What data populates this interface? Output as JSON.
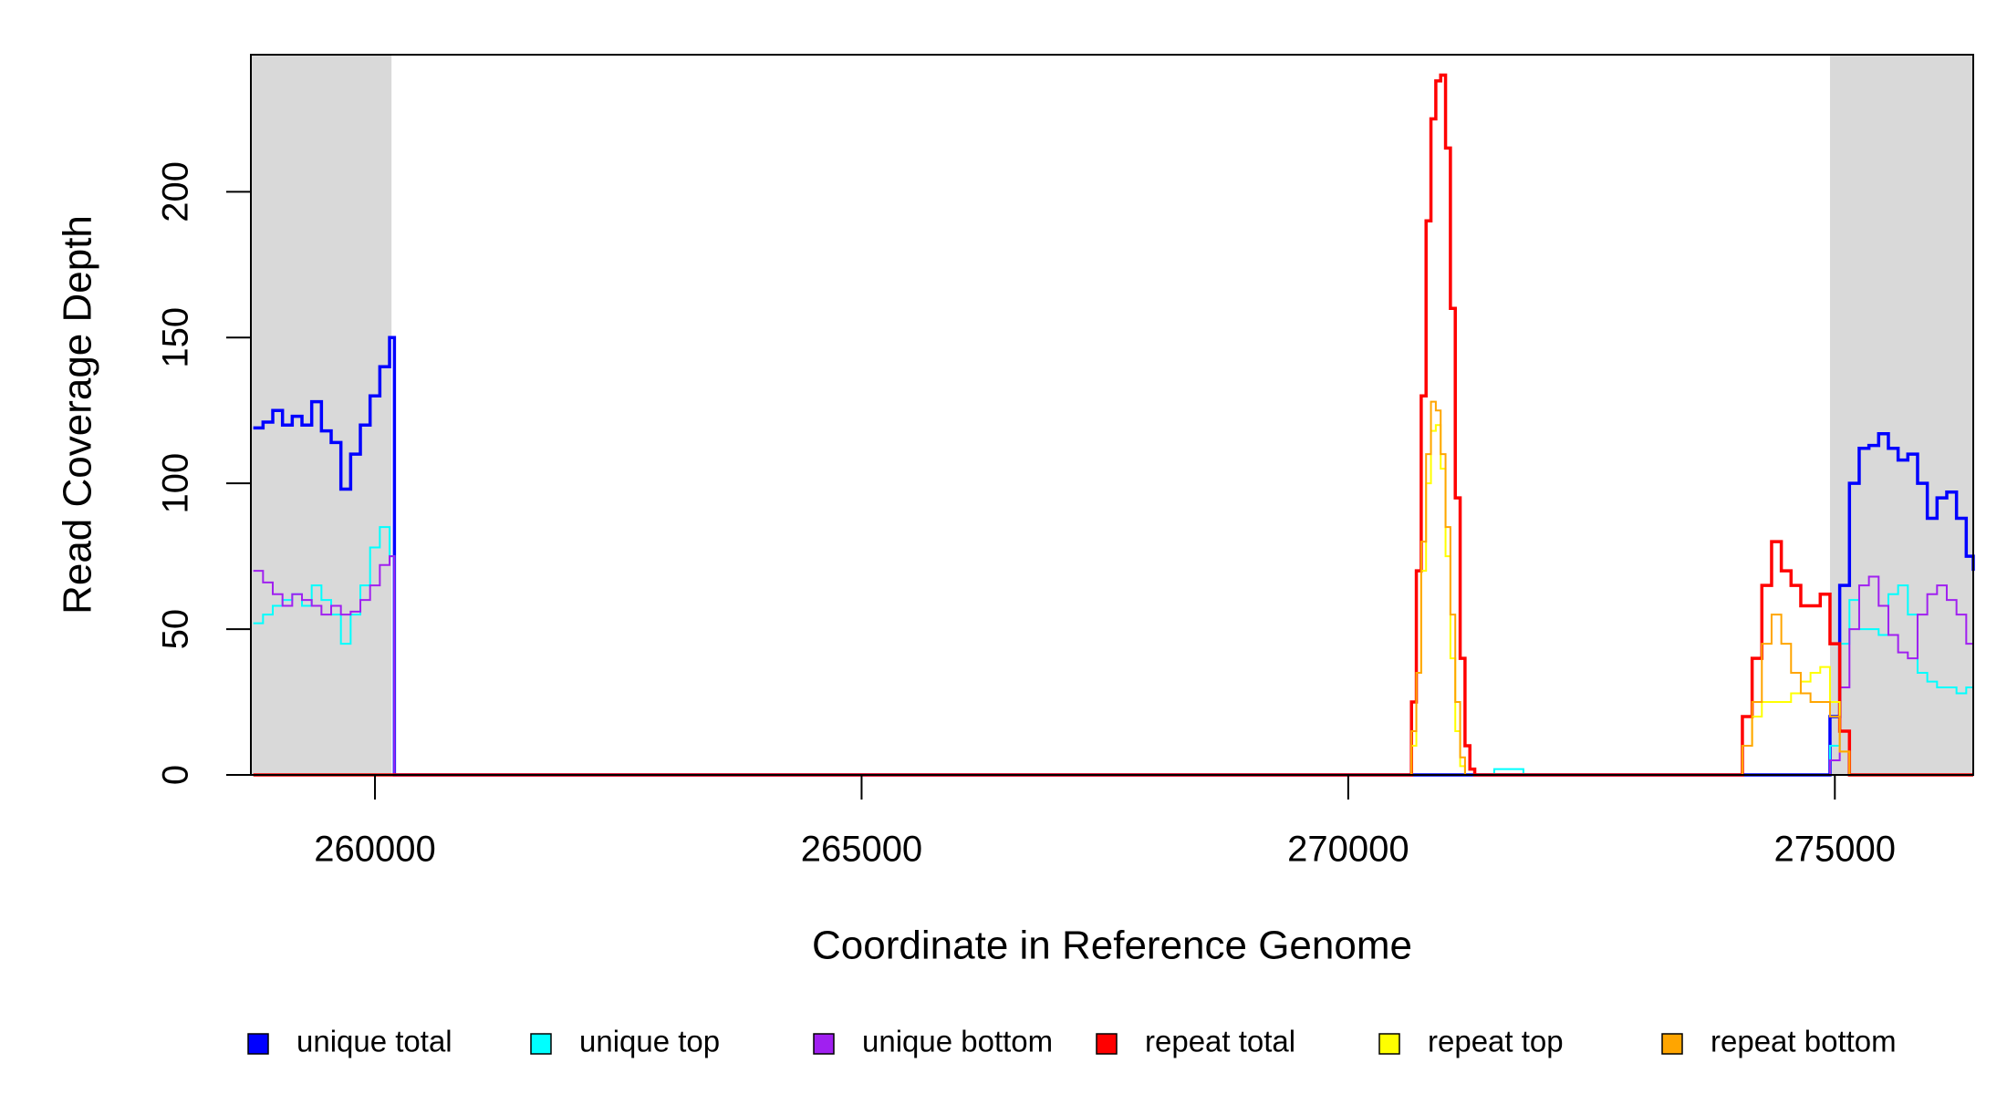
{
  "chart_data": {
    "type": "step",
    "x_label": "Coordinate in Reference Genome",
    "y_label": "Read Coverage Depth",
    "x": [
      258750,
      258850,
      258950,
      259050,
      259150,
      259250,
      259350,
      259450,
      259550,
      259650,
      259750,
      259850,
      259950,
      260050,
      260150,
      260200,
      270550,
      270650,
      270700,
      270750,
      270800,
      270850,
      270900,
      270950,
      271000,
      271050,
      271100,
      271150,
      271200,
      271250,
      271300,
      271500,
      271800,
      273950,
      274050,
      274150,
      274250,
      274350,
      274450,
      274550,
      274650,
      274750,
      274850,
      274950,
      275050,
      275150,
      275250,
      275350,
      275450,
      275550,
      275650,
      275750,
      275850,
      275950,
      276050,
      276150,
      276250,
      276350,
      276422
    ],
    "series": [
      {
        "name": "unique total",
        "color": "#0000ff",
        "values": [
          119,
          121,
          125,
          120,
          123,
          120,
          128,
          118,
          114,
          98,
          110,
          120,
          130,
          140,
          150,
          0,
          0,
          0,
          0,
          0,
          0,
          0,
          0,
          0,
          0,
          0,
          0,
          0,
          0,
          0,
          0,
          0,
          0,
          0,
          0,
          0,
          0,
          0,
          0,
          0,
          0,
          0,
          0,
          20,
          65,
          100,
          112,
          113,
          117,
          112,
          108,
          110,
          100,
          88,
          95,
          97,
          88,
          75,
          70
        ]
      },
      {
        "name": "unique top",
        "color": "#00ffff",
        "values": [
          52,
          55,
          58,
          60,
          62,
          58,
          65,
          60,
          55,
          45,
          55,
          65,
          78,
          85,
          75,
          0,
          0,
          0,
          0,
          0,
          0,
          0,
          0,
          0,
          0,
          0,
          0,
          0,
          0,
          0,
          0,
          2,
          0,
          0,
          0,
          0,
          0,
          0,
          0,
          0,
          0,
          0,
          0,
          10,
          45,
          60,
          50,
          50,
          48,
          62,
          65,
          55,
          35,
          32,
          30,
          30,
          28,
          30,
          30
        ]
      },
      {
        "name": "unique bottom",
        "color": "#a020f0",
        "values": [
          70,
          66,
          62,
          58,
          62,
          60,
          58,
          55,
          58,
          55,
          56,
          60,
          65,
          72,
          75,
          0,
          0,
          0,
          0,
          0,
          0,
          0,
          0,
          0,
          0,
          0,
          0,
          0,
          0,
          0,
          0,
          0,
          0,
          0,
          0,
          0,
          0,
          0,
          0,
          0,
          0,
          0,
          0,
          5,
          30,
          50,
          65,
          68,
          58,
          48,
          42,
          40,
          55,
          62,
          65,
          60,
          55,
          45,
          40
        ]
      },
      {
        "name": "repeat total",
        "color": "#ff0000",
        "values": [
          0,
          0,
          0,
          0,
          0,
          0,
          0,
          0,
          0,
          0,
          0,
          0,
          0,
          0,
          0,
          0,
          0,
          25,
          70,
          130,
          190,
          225,
          238,
          240,
          215,
          160,
          95,
          40,
          10,
          2,
          0,
          0,
          0,
          0,
          20,
          40,
          65,
          80,
          70,
          65,
          58,
          58,
          62,
          45,
          15,
          0,
          0,
          0,
          0,
          0,
          0,
          0,
          0,
          0,
          0,
          0,
          0,
          0,
          0
        ]
      },
      {
        "name": "repeat top",
        "color": "#ffff00",
        "values": [
          0,
          0,
          0,
          0,
          0,
          0,
          0,
          0,
          0,
          0,
          0,
          0,
          0,
          0,
          0,
          0,
          0,
          10,
          35,
          70,
          100,
          118,
          120,
          105,
          75,
          40,
          15,
          3,
          0,
          0,
          0,
          0,
          0,
          0,
          10,
          20,
          25,
          25,
          25,
          28,
          32,
          35,
          37,
          25,
          8,
          0,
          0,
          0,
          0,
          0,
          0,
          0,
          0,
          0,
          0,
          0,
          0,
          0,
          0
        ]
      },
      {
        "name": "repeat bottom",
        "color": "#ffa500",
        "values": [
          0,
          0,
          0,
          0,
          0,
          0,
          0,
          0,
          0,
          0,
          0,
          0,
          0,
          0,
          0,
          0,
          0,
          15,
          35,
          80,
          110,
          128,
          125,
          110,
          85,
          55,
          25,
          6,
          0,
          0,
          0,
          0,
          0,
          0,
          10,
          25,
          45,
          55,
          45,
          35,
          28,
          25,
          25,
          20,
          8,
          0,
          0,
          0,
          0,
          0,
          0,
          0,
          0,
          0,
          0,
          0,
          0,
          0,
          0
        ]
      }
    ],
    "shaded_regions": [
      [
        258725,
        260170
      ],
      [
        274950,
        276422
      ]
    ],
    "shade_color": "#d9d9d9",
    "xlim": [
      258725,
      276422
    ],
    "ylim": [
      0,
      247
    ],
    "xticks": [
      260000,
      265000,
      270000,
      275000
    ],
    "yticks": [
      0,
      50,
      100,
      150,
      200
    ],
    "legend": "bottom"
  }
}
